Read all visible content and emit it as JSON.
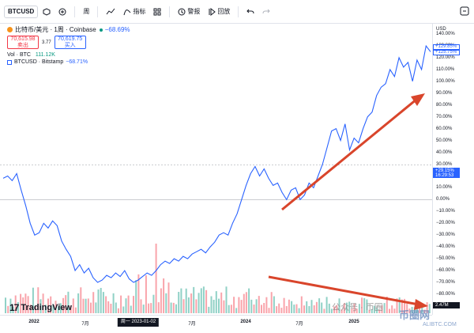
{
  "toolbar": {
    "symbol": "BTCUSD",
    "interval": "周",
    "indicators_label": "指标",
    "alerts_label": "警报",
    "replay_label": "回放"
  },
  "legend": {
    "title": "比特币/美元 · 1周 · Coinbase",
    "change_pct": "−68.69%",
    "sell_price": "70,615.98",
    "sell_label": "卖出",
    "spread": "3.77",
    "buy_price": "70,619.75",
    "buy_label": "买入",
    "volume_label": "Vol · BTC",
    "volume_value": "111.12K",
    "compare_label": "BTCUSD · Bitstamp",
    "compare_pct": "−68.71%"
  },
  "scale": {
    "currency": "USD",
    "ticks": [
      "140.00%",
      "130.00%",
      "120.00%",
      "110.00%",
      "100.00%",
      "90.00%",
      "80.00%",
      "70.00%",
      "60.00%",
      "50.00%",
      "40.00%",
      "30.00%",
      "20.00%",
      "10.00%",
      "0.00%",
      "−10.00%",
      "−20.00%",
      "−30.00%",
      "−40.00%",
      "−50.00%",
      "−60.00%",
      "−70.00%",
      "−80.00%"
    ],
    "tag_top_1": "+129.85%",
    "tag_top_2": "+125.75%",
    "tag_mid_value": "+29.15%",
    "tag_mid_time": "16:29:53",
    "tag_bottom": "2.47M"
  },
  "timeaxis": {
    "labels": [
      "2022",
      "7月",
      "2024",
      "7月",
      "2025"
    ],
    "cursor_date": "周一 2023-01-02",
    "label_7m_b": "7月"
  },
  "branding": {
    "logo": "TradingView",
    "watermark": "公众号 · 币圈",
    "watermark_site": "币圈网",
    "watermark_url": "ALIBTC.COM"
  },
  "colors": {
    "line": "#2962ff",
    "vol_up": "#089981",
    "vol_down": "#f23645",
    "arrow": "#d9452b"
  },
  "chart_data": {
    "type": "line",
    "title": "比特币/美元 · 1周 · Coinbase",
    "y_unit": "%",
    "ylim": [
      -80,
      140
    ],
    "x_range": [
      "2021-10",
      "2025-03"
    ],
    "series": [
      {
        "name": "BTCUSD · Bitstamp",
        "values_pct": [
          18,
          20,
          16,
          22,
          8,
          -5,
          -20,
          -30,
          -28,
          -20,
          -24,
          -18,
          -22,
          -35,
          -42,
          -48,
          -60,
          -55,
          -62,
          -58,
          -66,
          -70,
          -68,
          -64,
          -66,
          -62,
          -65,
          -60,
          -67,
          -70,
          -68,
          -65,
          -62,
          -64,
          -60,
          -55,
          -52,
          -54,
          -50,
          -52,
          -48,
          -50,
          -46,
          -44,
          -42,
          -45,
          -40,
          -36,
          -30,
          -28,
          -30,
          -20,
          -12,
          0,
          12,
          22,
          28,
          20,
          26,
          18,
          12,
          14,
          6,
          0,
          8,
          10,
          0,
          4,
          14,
          10,
          20,
          30,
          44,
          58,
          60,
          50,
          64,
          42,
          52,
          48,
          60,
          70,
          74,
          88,
          95,
          98,
          110,
          104,
          120,
          112,
          116,
          100,
          118,
          110,
          130,
          125
        ]
      }
    ],
    "volume": {
      "name": "Vol · BTC",
      "last": "111.12K"
    },
    "annotations": [
      "upward trend arrow on price",
      "downward trend arrow on volume"
    ]
  }
}
